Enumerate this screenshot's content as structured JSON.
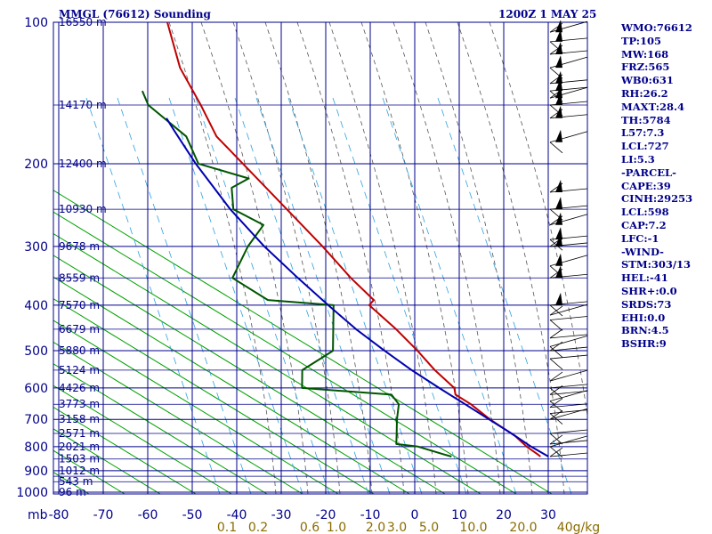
{
  "header": {
    "station_title": "MMGL (76612) Sounding",
    "date_time": "1200Z  1 MAY 25"
  },
  "stats": [
    "WMO:76612",
    "TP:105",
    "MW:168",
    "FRZ:565",
    "WB0:631",
    "RH:26.2",
    "MAXT:28.4",
    "TH:5784",
    "L57:7.3",
    "LCL:727",
    "LI:5.3",
    "-PARCEL-",
    "CAPE:39",
    "CINH:29253",
    "LCL:598",
    "CAP:7.2",
    "LFC:-1",
    "-WIND-",
    "STM:303/13",
    "HEL:-41",
    "SHR+:0.0",
    "SRDS:73",
    "EHI:0.0",
    "BRN:4.5",
    "BSHR:9"
  ],
  "colors": {
    "grid": "#00008b",
    "temperature": "#c00000",
    "dewpoint": "#005500",
    "parcel": "#0000b0",
    "dry_adiabat": "#00a000",
    "moist_adiabat": "#555555",
    "mixing_ratio": "#2fa0e0",
    "wind_barb": "#000000",
    "mixing_label": "#8b6b00"
  },
  "chart_data": {
    "type": "skew-t",
    "y_axis": {
      "unit": "mb",
      "scale": "log",
      "range": [
        1000,
        100
      ],
      "ticks": [
        100,
        200,
        300,
        400,
        500,
        600,
        700,
        800,
        900,
        1000
      ],
      "tick_labels": [
        "100",
        "200",
        "300",
        "400",
        "500",
        "600",
        "700",
        "800",
        "900",
        "1000"
      ],
      "minor_levels": [
        150,
        250,
        350,
        450,
        550,
        650,
        750,
        850,
        925,
        950
      ]
    },
    "x_axis": {
      "unit_label": "mb",
      "ticks": [
        -80,
        -70,
        -60,
        -50,
        -40,
        -30,
        -20,
        -10,
        0,
        10,
        20,
        30
      ],
      "tick_labels": [
        "-80",
        "-70",
        "-60",
        "-50",
        "-40",
        "-30",
        "-20",
        "-10",
        "0",
        "10",
        "20",
        "30"
      ],
      "range": [
        -80,
        40
      ]
    },
    "height_labels": [
      {
        "p": 100,
        "label": "16550 m"
      },
      {
        "p": 150,
        "label": "14170 m"
      },
      {
        "p": 200,
        "label": "12400 m"
      },
      {
        "p": 250,
        "label": "10930 m"
      },
      {
        "p": 300,
        "label": "9678 m"
      },
      {
        "p": 350,
        "label": "8559 m"
      },
      {
        "p": 400,
        "label": "7570 m"
      },
      {
        "p": 450,
        "label": "6679 m"
      },
      {
        "p": 500,
        "label": "5880 m"
      },
      {
        "p": 550,
        "label": "5124 m"
      },
      {
        "p": 600,
        "label": "4426 m"
      },
      {
        "p": 650,
        "label": "3773 m"
      },
      {
        "p": 700,
        "label": "3158 m"
      },
      {
        "p": 750,
        "label": "2571 m"
      },
      {
        "p": 800,
        "label": "2021 m"
      },
      {
        "p": 850,
        "label": "1503 m"
      },
      {
        "p": 900,
        "label": "1012 m"
      },
      {
        "p": 950,
        "label": "543 m"
      },
      {
        "p": 1000,
        "label": "96 m"
      }
    ],
    "mixing_ratio_labels": [
      "0.1",
      "0.2",
      "0.6",
      "1.0",
      "2.0",
      "3.0",
      "5.0",
      "10.0",
      "20.0",
      "40g/kg"
    ],
    "mixing_ratio_values": [
      0.1,
      0.2,
      0.6,
      1.0,
      2.0,
      3.0,
      5.0,
      10.0,
      20.0,
      40.0
    ],
    "series": [
      {
        "key": "temperature",
        "points": [
          [
            840,
            26.6
          ],
          [
            830,
            25.8
          ],
          [
            800,
            23.0
          ],
          [
            760,
            20.0
          ],
          [
            700,
            13.5
          ],
          [
            650,
            8.5
          ],
          [
            620,
            4.6
          ],
          [
            600,
            4.0
          ],
          [
            550,
            -1.2
          ],
          [
            500,
            -6.0
          ],
          [
            450,
            -11.8
          ],
          [
            400,
            -19.0
          ],
          [
            390,
            -18.2
          ],
          [
            350,
            -24.4
          ],
          [
            300,
            -32.2
          ],
          [
            250,
            -42.0
          ],
          [
            200,
            -54.0
          ],
          [
            175,
            -61.2
          ],
          [
            150,
            -66.2
          ],
          [
            125,
            -72.6
          ],
          [
            100,
            -77.6
          ]
        ]
      },
      {
        "key": "dewpoint",
        "points": [
          [
            840,
            6.6
          ],
          [
            830,
            4.6
          ],
          [
            800,
            -1.4
          ],
          [
            790,
            -6.4
          ],
          [
            750,
            -6.8
          ],
          [
            700,
            -7.4
          ],
          [
            650,
            -7.7
          ],
          [
            620,
            -9.8
          ],
          [
            600,
            -30.2
          ],
          [
            550,
            -31.0
          ],
          [
            500,
            -25.0
          ],
          [
            400,
            -27.0
          ],
          [
            390,
            -42.0
          ],
          [
            350,
            -51.0
          ],
          [
            300,
            -49.0
          ],
          [
            270,
            -46.5
          ],
          [
            250,
            -54.0
          ],
          [
            225,
            -55.4
          ],
          [
            215,
            -52.0
          ],
          [
            200,
            -64.0
          ],
          [
            175,
            -68.0
          ],
          [
            150,
            -78.0
          ],
          [
            140,
            -80.0
          ]
        ]
      },
      {
        "key": "parcel",
        "points": [
          [
            840,
            28.4
          ],
          [
            800,
            24.0
          ],
          [
            750,
            19.0
          ],
          [
            700,
            13.3
          ],
          [
            650,
            7.2
          ],
          [
            600,
            0.6
          ],
          [
            550,
            -6.4
          ],
          [
            500,
            -13.4
          ],
          [
            450,
            -20.8
          ],
          [
            400,
            -28.2
          ],
          [
            350,
            -36.3
          ],
          [
            300,
            -45.3
          ],
          [
            250,
            -54.7
          ],
          [
            200,
            -64.6
          ],
          [
            170,
            -71.0
          ],
          [
            160,
            -73.3
          ]
        ]
      }
    ],
    "wind_levels": [
      105,
      110,
      117,
      125,
      135,
      140,
      145,
      150,
      160,
      180,
      230,
      250,
      270,
      290,
      300,
      330,
      350,
      400,
      420,
      430,
      470,
      490,
      500,
      520,
      580,
      600,
      620,
      640,
      660,
      680,
      700,
      750,
      790,
      800,
      840
    ]
  }
}
